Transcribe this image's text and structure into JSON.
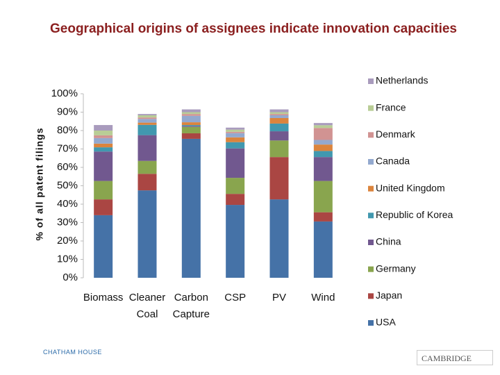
{
  "chart_data": {
    "type": "stacked_bar",
    "title": "Geographical origins of assignees indicate innovation capacities",
    "y_label": "% of all patent filings",
    "categories": [
      "Biomass",
      "Cleaner Coal",
      "Carbon Capture",
      "CSP",
      "PV",
      "Wind"
    ],
    "series": [
      {
        "name": "USA",
        "color": "#4572a7",
        "values": [
          34,
          47.5,
          75.5,
          39.6,
          42.6,
          30.6
        ]
      },
      {
        "name": "Japan",
        "color": "#aa4643",
        "values": [
          8.6,
          9,
          3,
          6,
          23,
          5
        ]
      },
      {
        "name": "Germany",
        "color": "#89a54e",
        "values": [
          10,
          7,
          3.5,
          8.7,
          9,
          17
        ]
      },
      {
        "name": "China",
        "color": "#71588f",
        "values": [
          16,
          14,
          0.5,
          16,
          5,
          13
        ]
      },
      {
        "name": "Republic of Korea",
        "color": "#4198af",
        "values": [
          2.3,
          5.6,
          0.5,
          3.4,
          4.2,
          3.3
        ]
      },
      {
        "name": "United Kingdom",
        "color": "#db843d",
        "values": [
          2,
          1.2,
          1.5,
          2.6,
          3,
          3.5
        ]
      },
      {
        "name": "Canada",
        "color": "#93a9cf",
        "values": [
          3,
          2,
          3.5,
          2.3,
          1.5,
          2.5
        ]
      },
      {
        "name": "Denmark",
        "color": "#d19392",
        "values": [
          1.5,
          0.8,
          1,
          0.7,
          0.7,
          6.5
        ]
      },
      {
        "name": "France",
        "color": "#b9cd96",
        "values": [
          2.6,
          1.2,
          1,
          1.2,
          1,
          1.5
        ]
      },
      {
        "name": "Netherlands",
        "color": "#a99bbd",
        "values": [
          3,
          0.7,
          1.5,
          1.1,
          1.5,
          1.2
        ]
      }
    ],
    "ylim": [
      0,
      100
    ],
    "yticks": [
      {
        "value": 0,
        "label": "0%"
      },
      {
        "value": 10,
        "label": "10%"
      },
      {
        "value": 20,
        "label": "20%"
      },
      {
        "value": 30,
        "label": "30%"
      },
      {
        "value": 40,
        "label": "40%"
      },
      {
        "value": 50,
        "label": "50%"
      },
      {
        "value": 60,
        "label": "60%"
      },
      {
        "value": 70,
        "label": "70%"
      },
      {
        "value": 80,
        "label": "80%"
      },
      {
        "value": 90,
        "label": "90%"
      },
      {
        "value": 100,
        "label": "100%"
      }
    ],
    "grid": false
  },
  "logos": [
    "CHATHAM HOUSE",
    "CAMBRIDGE"
  ]
}
